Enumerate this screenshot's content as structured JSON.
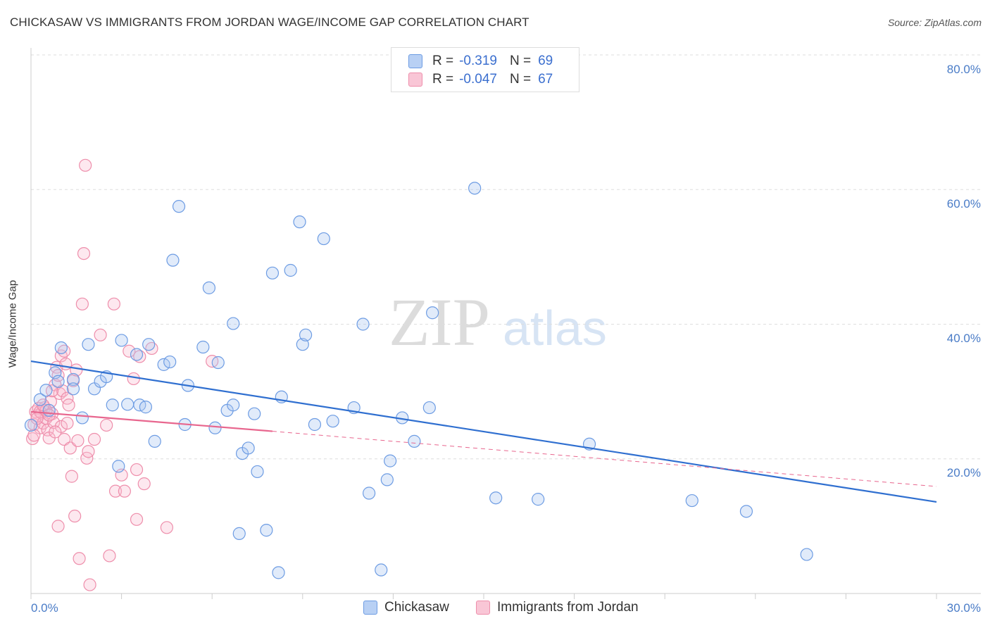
{
  "header": {
    "title": "CHICKASAW VS IMMIGRANTS FROM JORDAN WAGE/INCOME GAP CORRELATION CHART",
    "source": "Source: ZipAtlas.com"
  },
  "watermark": {
    "zip": "ZIP",
    "atlas": "atlas"
  },
  "legend_top": {
    "rows": [
      {
        "r_label": "R =",
        "r_value": "-0.319",
        "n_label": "N =",
        "n_value": "69",
        "color_fill": "#b8d0f4",
        "color_stroke": "#6d9ce3"
      },
      {
        "r_label": "R =",
        "r_value": "-0.047",
        "n_label": "N =",
        "n_value": "67",
        "color_fill": "#f9c6d6",
        "color_stroke": "#ee8eab"
      }
    ]
  },
  "legend_bottom": {
    "items": [
      {
        "label": "Chickasaw",
        "color_fill": "#b8d0f4",
        "color_stroke": "#6d9ce3"
      },
      {
        "label": "Immigrants from Jordan",
        "color_fill": "#f9c6d6",
        "color_stroke": "#ee8eab"
      }
    ]
  },
  "chart_data": {
    "type": "scatter",
    "title": "CHICKASAW VS IMMIGRANTS FROM JORDAN WAGE/INCOME GAP CORRELATION CHART",
    "xlabel": "",
    "ylabel": "Wage/Income Gap",
    "xlim": [
      0,
      30
    ],
    "ylim": [
      0,
      80
    ],
    "x_tick_labels": [
      "0.0%",
      "30.0%"
    ],
    "y_tick_labels": [
      "20.0%",
      "40.0%",
      "60.0%",
      "80.0%"
    ],
    "y_ticks": [
      20,
      40,
      60,
      80
    ],
    "grid": true,
    "series": [
      {
        "name": "Chickasaw",
        "color": "#6d9ce3",
        "fill": "rgba(168,198,242,0.35)",
        "line_color": "#2f6fd0",
        "r": -0.319,
        "n": 69,
        "trend": {
          "x0": 0,
          "y0": 34.5,
          "x1": 30,
          "y1": 13.6
        },
        "points": [
          [
            0.3,
            28.8
          ],
          [
            0.5,
            30.2
          ],
          [
            0.6,
            27.2
          ],
          [
            0.8,
            32.8
          ],
          [
            0.9,
            31.5
          ],
          [
            1.0,
            36.5
          ],
          [
            1.4,
            31.8
          ],
          [
            1.4,
            30.4
          ],
          [
            1.7,
            26.1
          ],
          [
            1.9,
            37.0
          ],
          [
            2.1,
            30.4
          ],
          [
            2.3,
            31.5
          ],
          [
            2.5,
            32.2
          ],
          [
            2.7,
            28.0
          ],
          [
            2.9,
            18.9
          ],
          [
            3.0,
            37.6
          ],
          [
            3.2,
            28.1
          ],
          [
            3.5,
            35.5
          ],
          [
            3.6,
            28.0
          ],
          [
            3.8,
            27.7
          ],
          [
            3.9,
            37.0
          ],
          [
            4.1,
            22.6
          ],
          [
            4.4,
            34.0
          ],
          [
            4.6,
            34.4
          ],
          [
            4.7,
            49.5
          ],
          [
            4.9,
            57.5
          ],
          [
            5.1,
            25.1
          ],
          [
            5.2,
            30.9
          ],
          [
            5.7,
            36.6
          ],
          [
            5.9,
            45.4
          ],
          [
            6.1,
            24.6
          ],
          [
            6.2,
            34.3
          ],
          [
            6.5,
            27.2
          ],
          [
            6.7,
            28.0
          ],
          [
            6.7,
            40.1
          ],
          [
            6.9,
            8.9
          ],
          [
            7.0,
            20.8
          ],
          [
            7.2,
            21.6
          ],
          [
            7.4,
            26.7
          ],
          [
            7.5,
            18.1
          ],
          [
            7.8,
            9.4
          ],
          [
            8.0,
            47.6
          ],
          [
            8.2,
            3.1
          ],
          [
            8.3,
            29.2
          ],
          [
            8.6,
            48.0
          ],
          [
            8.9,
            55.2
          ],
          [
            9.0,
            37.0
          ],
          [
            9.1,
            38.4
          ],
          [
            9.4,
            25.1
          ],
          [
            9.7,
            52.7
          ],
          [
            10.0,
            25.6
          ],
          [
            10.7,
            27.6
          ],
          [
            11.0,
            40.0
          ],
          [
            11.2,
            14.9
          ],
          [
            11.6,
            3.5
          ],
          [
            11.8,
            16.9
          ],
          [
            11.9,
            19.7
          ],
          [
            12.3,
            26.1
          ],
          [
            12.7,
            22.6
          ],
          [
            13.2,
            27.6
          ],
          [
            13.3,
            41.7
          ],
          [
            14.7,
            60.2
          ],
          [
            15.4,
            14.2
          ],
          [
            16.8,
            14.0
          ],
          [
            18.5,
            22.2
          ],
          [
            21.9,
            13.8
          ],
          [
            23.7,
            12.2
          ],
          [
            25.7,
            5.8
          ],
          [
            0.0,
            25.0
          ]
        ]
      },
      {
        "name": "Immigrants from Jordan",
        "color": "#ee8eab",
        "fill": "rgba(248,188,208,0.35)",
        "line_color": "#e8668e",
        "r": -0.047,
        "n": 67,
        "trend_solid": {
          "x0": 0,
          "y0": 27.0,
          "x1": 8,
          "y1": 24.1
        },
        "trend_dashed": {
          "x0": 8,
          "y0": 24.1,
          "x1": 30,
          "y1": 15.9
        },
        "points": [
          [
            0.1,
            25.1
          ],
          [
            0.15,
            27.0
          ],
          [
            0.2,
            26.4
          ],
          [
            0.25,
            27.5
          ],
          [
            0.3,
            24.6
          ],
          [
            0.35,
            26.8
          ],
          [
            0.4,
            25.3
          ],
          [
            0.45,
            27.6
          ],
          [
            0.5,
            26.0
          ],
          [
            0.55,
            24.3
          ],
          [
            0.6,
            23.1
          ],
          [
            0.65,
            28.5
          ],
          [
            0.7,
            26.7
          ],
          [
            0.75,
            25.4
          ],
          [
            0.8,
            31.0
          ],
          [
            0.85,
            33.6
          ],
          [
            0.9,
            32.4
          ],
          [
            0.95,
            29.7
          ],
          [
            1.0,
            35.3
          ],
          [
            1.0,
            24.8
          ],
          [
            1.05,
            30.1
          ],
          [
            1.1,
            22.9
          ],
          [
            1.15,
            34.1
          ],
          [
            1.2,
            29.0
          ],
          [
            1.25,
            28.0
          ],
          [
            1.3,
            21.6
          ],
          [
            1.35,
            17.4
          ],
          [
            1.4,
            31.6
          ],
          [
            1.45,
            11.5
          ],
          [
            1.5,
            33.2
          ],
          [
            1.55,
            22.7
          ],
          [
            1.6,
            5.2
          ],
          [
            1.7,
            43.0
          ],
          [
            1.75,
            50.5
          ],
          [
            1.8,
            63.6
          ],
          [
            1.85,
            20.1
          ],
          [
            1.9,
            21.1
          ],
          [
            1.95,
            1.3
          ],
          [
            2.1,
            22.9
          ],
          [
            2.3,
            38.4
          ],
          [
            2.5,
            25.0
          ],
          [
            2.6,
            5.6
          ],
          [
            2.75,
            43.0
          ],
          [
            2.8,
            15.2
          ],
          [
            3.0,
            17.6
          ],
          [
            3.1,
            15.2
          ],
          [
            3.25,
            36.0
          ],
          [
            3.4,
            31.9
          ],
          [
            3.5,
            18.4
          ],
          [
            3.5,
            11.0
          ],
          [
            3.6,
            35.2
          ],
          [
            3.75,
            16.3
          ],
          [
            4.0,
            36.4
          ],
          [
            4.5,
            9.8
          ],
          [
            6.0,
            34.5
          ],
          [
            0.05,
            23.0
          ],
          [
            0.1,
            23.5
          ],
          [
            0.3,
            27.0
          ],
          [
            0.5,
            27.2
          ],
          [
            0.7,
            30.1
          ],
          [
            0.9,
            10.0
          ],
          [
            1.1,
            36.0
          ],
          [
            1.2,
            25.3
          ],
          [
            0.2,
            26.0
          ],
          [
            0.4,
            28.0
          ],
          [
            0.6,
            26.5
          ],
          [
            0.8,
            24.0
          ]
        ]
      }
    ]
  }
}
